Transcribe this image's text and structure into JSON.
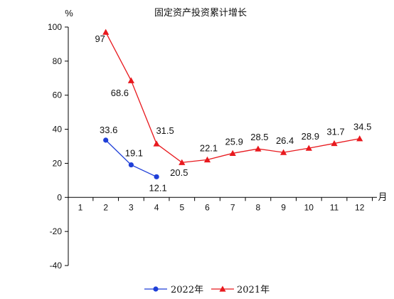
{
  "chart_data": {
    "type": "line",
    "title": "固定资产投资累计增长",
    "ylabel": "%",
    "xlabel": "月",
    "categories": [
      "1",
      "2",
      "3",
      "4",
      "5",
      "6",
      "7",
      "8",
      "9",
      "10",
      "11",
      "12"
    ],
    "ylim": [
      -40,
      100
    ],
    "yticks": [
      "-40",
      "-20",
      "0",
      "20",
      "40",
      "60",
      "80",
      "100"
    ],
    "legend_position": "bottom",
    "series": [
      {
        "name": "2022年",
        "color": "#1f3fd8",
        "marker": "circle",
        "x": [
          2,
          3,
          4
        ],
        "values": [
          33.6,
          19.1,
          12.1
        ],
        "labels": [
          "33.6",
          "19.1",
          "12.1"
        ]
      },
      {
        "name": "2021年",
        "color": "#e8191e",
        "marker": "triangle",
        "x": [
          2,
          3,
          4,
          5,
          6,
          7,
          8,
          9,
          10,
          11,
          12
        ],
        "values": [
          97,
          68.6,
          31.5,
          20.5,
          22.1,
          25.9,
          28.5,
          26.4,
          28.9,
          31.7,
          34.5
        ],
        "labels": [
          "97",
          "68.6",
          "31.5",
          "20.5",
          "22.1",
          "25.9",
          "28.5",
          "26.4",
          "28.9",
          "31.7",
          "34.5"
        ]
      }
    ]
  }
}
